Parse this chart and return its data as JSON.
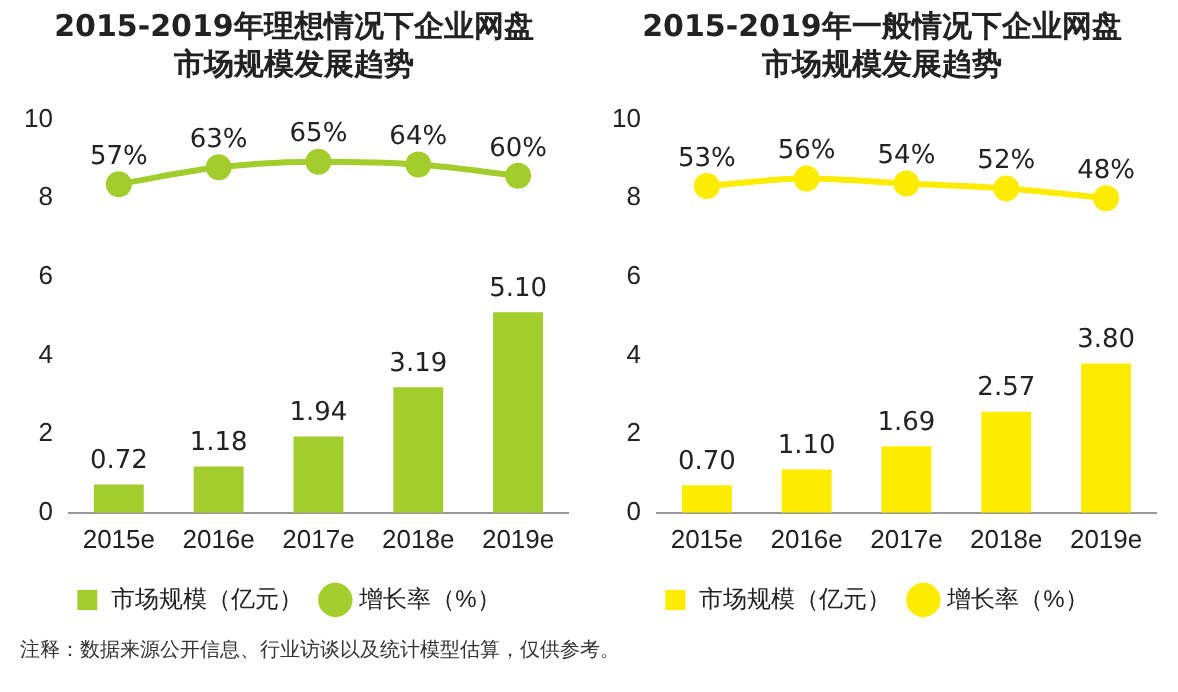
{
  "chart_data": [
    {
      "type": "bar",
      "title": "2015-2019年理想情况下企业网盘市场规模发展趋势",
      "categories": [
        "2015e",
        "2016e",
        "2017e",
        "2018e",
        "2019e"
      ],
      "series": [
        {
          "name": "市场规模（亿元）",
          "color": "#a2cd2c",
          "values": [
            0.72,
            1.18,
            1.94,
            3.19,
            5.1
          ],
          "value_labels": [
            "0.72",
            "1.18",
            "1.94",
            "3.19",
            "5.10"
          ]
        },
        {
          "name": "增长率（%）",
          "type": "line",
          "axis": "y2",
          "color": "#a2cd2c",
          "values": [
            57,
            63,
            65,
            64,
            60
          ],
          "value_labels": [
            "57%",
            "63%",
            "65%",
            "64%",
            "60%"
          ]
        }
      ],
      "ylim": [
        0,
        10
      ],
      "yticks": [
        0,
        2,
        4,
        6,
        8,
        10
      ],
      "grid": false,
      "legend": "bottom",
      "marker": "circle"
    },
    {
      "type": "bar",
      "title": "2015-2019年一般情况下企业网盘市场规模发展趋势",
      "categories": [
        "2015e",
        "2016e",
        "2017e",
        "2018e",
        "2019e"
      ],
      "series": [
        {
          "name": "市场规模（亿元）",
          "color": "#fbec00",
          "values": [
            0.7,
            1.1,
            1.69,
            2.57,
            3.8
          ],
          "value_labels": [
            "0.70",
            "1.10",
            "1.69",
            "2.57",
            "3.80"
          ]
        },
        {
          "name": "增长率（%）",
          "type": "line",
          "axis": "y2",
          "color": "#fbec00",
          "values": [
            53,
            56,
            54,
            52,
            48
          ],
          "value_labels": [
            "53%",
            "56%",
            "54%",
            "52%",
            "48%"
          ]
        }
      ],
      "ylim": [
        0,
        10
      ],
      "yticks": [
        0,
        2,
        4,
        6,
        8,
        10
      ],
      "grid": false,
      "legend": "bottom",
      "marker": "circle",
      "annotations": [
        "注释：数据来源公开信息、行业访谈以及统计模型估算，仅供参考。"
      ]
    }
  ]
}
